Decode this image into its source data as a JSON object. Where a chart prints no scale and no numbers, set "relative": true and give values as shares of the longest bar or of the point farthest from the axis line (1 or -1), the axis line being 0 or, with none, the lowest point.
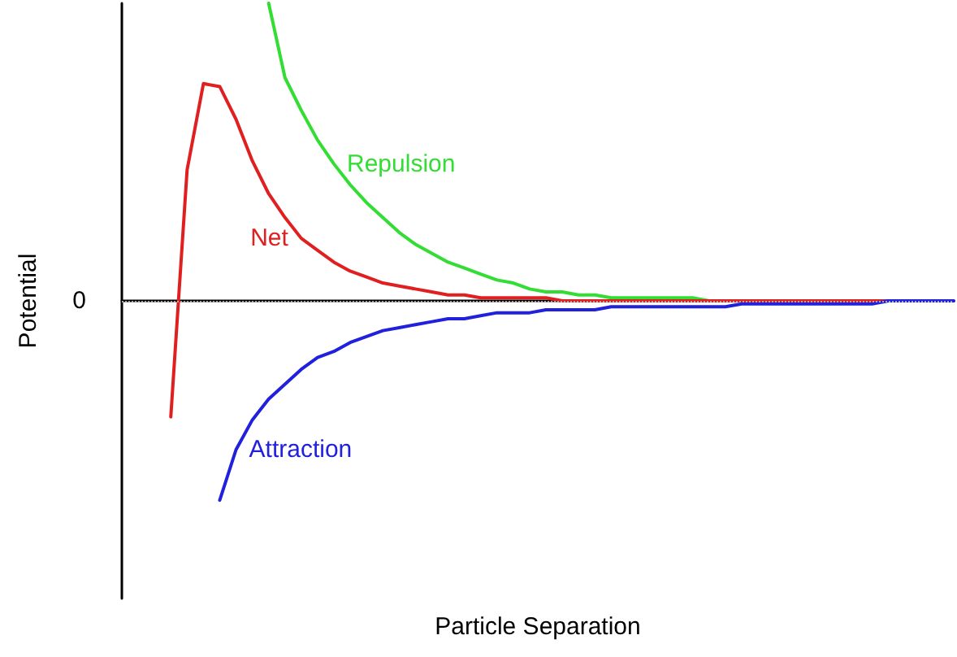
{
  "chart_data": {
    "type": "line",
    "relative": true,
    "xlabel": "Particle Separation",
    "ylabel": "Potential",
    "marker": "none",
    "line_style": "solid",
    "categories": [
      null,
      null,
      null,
      null,
      null,
      null,
      null,
      null,
      null,
      null,
      null,
      null,
      null,
      null,
      null,
      null,
      null,
      null,
      null,
      null,
      null,
      null,
      null,
      null,
      null,
      null,
      null,
      null,
      null,
      null,
      null,
      null,
      null,
      null,
      null,
      null,
      null,
      null,
      null,
      null,
      null,
      null,
      null,
      null,
      null,
      null,
      null,
      null,
      null,
      null,
      null,
      null
    ],
    "ref_lines": [
      {
        "axis": "y",
        "value": 0,
        "label": "0",
        "color": "#aaaaaa",
        "line_style": "dotted"
      }
    ],
    "series": [
      {
        "name": "Repulsion",
        "color": "#33dd33",
        "values": [
          null,
          null,
          null,
          null,
          null,
          null,
          null,
          null,
          null,
          1.0,
          0.75,
          0.64,
          0.54,
          0.46,
          0.39,
          0.33,
          0.28,
          0.23,
          0.19,
          0.16,
          0.13,
          0.11,
          0.09,
          0.07,
          0.06,
          0.04,
          0.03,
          0.03,
          0.02,
          0.02,
          0.01,
          0.01,
          0.01,
          0.01,
          0.01,
          0.01,
          0,
          0,
          null,
          null,
          null,
          null,
          null,
          null,
          null,
          null,
          null,
          null,
          null,
          null,
          null,
          null
        ]
      },
      {
        "name": "Net",
        "color": "#e02020",
        "values": [
          null,
          null,
          null,
          -0.39,
          0.44,
          0.73,
          0.72,
          0.61,
          0.47,
          0.36,
          0.28,
          0.21,
          0.17,
          0.13,
          0.1,
          0.08,
          0.06,
          0.05,
          0.04,
          0.03,
          0.02,
          0.02,
          0.01,
          0.01,
          0.01,
          0.01,
          0.01,
          0,
          0,
          0,
          0,
          0,
          0,
          0,
          0,
          0,
          0,
          0,
          0,
          0,
          0,
          0,
          0,
          0,
          0,
          0,
          0,
          0,
          0,
          null,
          null,
          null
        ]
      },
      {
        "name": "Attraction",
        "color": "#2020dd",
        "values": [
          null,
          null,
          null,
          null,
          null,
          null,
          -0.67,
          -0.5,
          -0.4,
          -0.33,
          -0.28,
          -0.23,
          -0.19,
          -0.17,
          -0.14,
          -0.12,
          -0.1,
          -0.09,
          -0.08,
          -0.07,
          -0.06,
          -0.06,
          -0.05,
          -0.04,
          -0.04,
          -0.04,
          -0.03,
          -0.03,
          -0.03,
          -0.03,
          -0.02,
          -0.02,
          -0.02,
          -0.02,
          -0.02,
          -0.02,
          -0.02,
          -0.02,
          -0.01,
          -0.01,
          -0.01,
          -0.01,
          -0.01,
          -0.01,
          -0.01,
          -0.01,
          -0.01,
          0,
          0,
          0,
          0,
          0
        ]
      }
    ]
  }
}
